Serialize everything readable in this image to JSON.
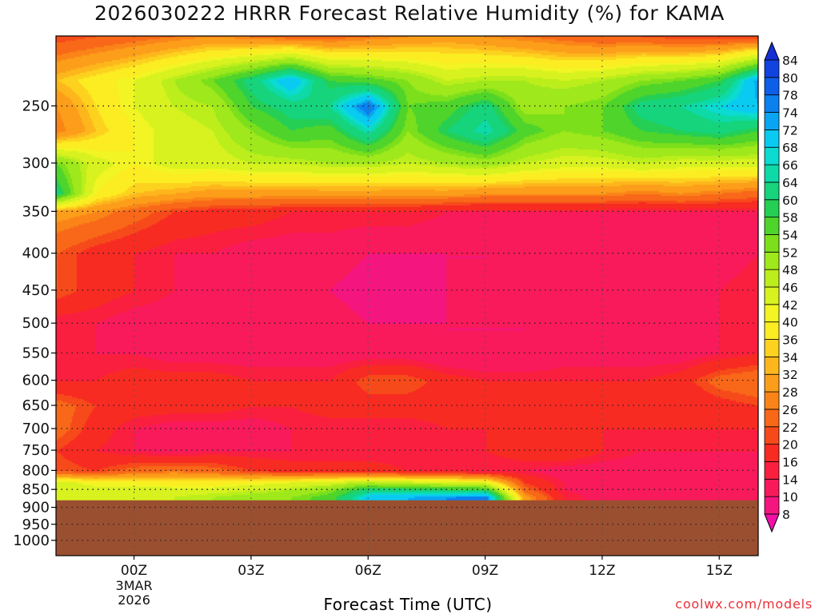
{
  "title": "2026030222 HRRR Forecast Relative Humidity (%) for KAMA",
  "credit": "coolwx.com/models",
  "chart_data": {
    "type": "heatmap",
    "title": "2026030222 HRRR Forecast Relative Humidity (%) for KAMA",
    "xlabel": "Forecast Time (UTC)",
    "ylabel": "",
    "x_ticks": [
      {
        "t": 0,
        "label": "00Z",
        "sub": [
          "3MAR",
          "2026"
        ]
      },
      {
        "t": 3,
        "label": "03Z"
      },
      {
        "t": 6,
        "label": "06Z"
      },
      {
        "t": 9,
        "label": "09Z"
      },
      {
        "t": 12,
        "label": "12Z"
      },
      {
        "t": 15,
        "label": "15Z"
      }
    ],
    "xlim": [
      -2,
      16
    ],
    "y_ticks": [
      250,
      300,
      350,
      400,
      450,
      500,
      550,
      600,
      650,
      700,
      750,
      800,
      850,
      900,
      950,
      1000
    ],
    "ylim": [
      1050,
      200
    ],
    "y_scale": "log",
    "grid": true,
    "ground_level_hpa": 880,
    "ground_color": "#9a4f30",
    "colorbar": {
      "levels": [
        8,
        10,
        14,
        16,
        20,
        22,
        26,
        28,
        32,
        34,
        36,
        40,
        42,
        46,
        48,
        52,
        54,
        58,
        60,
        64,
        66,
        68,
        72,
        74,
        78,
        80,
        84
      ],
      "colors": [
        "#f20fa7",
        "#f5157f",
        "#f81a5b",
        "#fb1f3f",
        "#f72b22",
        "#f74a1a",
        "#f86818",
        "#fa8418",
        "#fc9e1a",
        "#fdb71c",
        "#fdd21e",
        "#fcec22",
        "#f2f523",
        "#d8f21f",
        "#bcee1c",
        "#9ee81b",
        "#7bdf1b",
        "#4fd42b",
        "#25cf54",
        "#15d47c",
        "#0ddaa6",
        "#0bdbd0",
        "#09cbf2",
        "#0aa5f2",
        "#0b80ef",
        "#0d5ee9",
        "#1043df",
        "#1430d5"
      ]
    },
    "rh_profile": {
      "levels_hpa": [
        200,
        230,
        250,
        270,
        300,
        330,
        350,
        400,
        450,
        500,
        550,
        600,
        650,
        700,
        750,
        800,
        830,
        850,
        870
      ],
      "times": [
        -2,
        -1,
        0,
        1,
        2,
        3,
        4,
        5,
        6,
        7,
        8,
        9,
        10,
        11,
        12,
        13,
        14,
        15,
        16
      ],
      "values": [
        [
          20,
          22,
          24,
          26,
          28,
          26,
          24,
          24,
          26,
          28,
          30,
          28,
          26,
          24,
          22,
          22,
          20,
          20,
          20
        ],
        [
          34,
          38,
          42,
          48,
          54,
          62,
          72,
          58,
          56,
          52,
          46,
          48,
          48,
          46,
          48,
          52,
          54,
          58,
          74
        ],
        [
          28,
          36,
          42,
          46,
          48,
          58,
          62,
          64,
          78,
          54,
          56,
          62,
          50,
          52,
          54,
          62,
          64,
          68,
          72
        ],
        [
          26,
          34,
          40,
          44,
          46,
          52,
          58,
          56,
          66,
          52,
          60,
          66,
          56,
          52,
          54,
          58,
          60,
          62,
          58
        ],
        [
          54,
          44,
          40,
          44,
          44,
          46,
          46,
          48,
          48,
          46,
          48,
          50,
          46,
          44,
          44,
          46,
          44,
          44,
          44
        ],
        [
          62,
          40,
          34,
          32,
          30,
          30,
          30,
          30,
          30,
          30,
          30,
          28,
          28,
          28,
          28,
          26,
          28,
          26,
          24
        ],
        [
          30,
          28,
          24,
          20,
          18,
          18,
          16,
          16,
          16,
          16,
          14,
          14,
          14,
          14,
          14,
          14,
          14,
          14,
          14
        ],
        [
          22,
          18,
          16,
          14,
          14,
          12,
          12,
          12,
          10,
          10,
          10,
          10,
          12,
          12,
          12,
          12,
          12,
          12,
          14
        ],
        [
          22,
          18,
          16,
          14,
          12,
          12,
          12,
          10,
          8,
          8,
          10,
          10,
          10,
          12,
          12,
          12,
          12,
          14,
          16
        ],
        [
          14,
          14,
          12,
          12,
          12,
          12,
          12,
          12,
          10,
          10,
          10,
          10,
          10,
          12,
          12,
          12,
          12,
          14,
          14
        ],
        [
          14,
          14,
          14,
          12,
          12,
          12,
          12,
          12,
          12,
          12,
          10,
          10,
          10,
          12,
          12,
          12,
          12,
          14,
          16
        ],
        [
          16,
          16,
          18,
          18,
          18,
          16,
          16,
          16,
          22,
          22,
          18,
          16,
          16,
          16,
          16,
          16,
          18,
          24,
          26
        ],
        [
          24,
          20,
          18,
          18,
          18,
          16,
          16,
          18,
          18,
          18,
          18,
          16,
          16,
          16,
          16,
          16,
          16,
          18,
          20
        ],
        [
          24,
          18,
          14,
          12,
          12,
          12,
          14,
          14,
          14,
          14,
          16,
          16,
          20,
          18,
          16,
          16,
          16,
          16,
          16
        ],
        [
          20,
          16,
          14,
          12,
          14,
          14,
          14,
          14,
          14,
          14,
          14,
          16,
          18,
          20,
          16,
          14,
          14,
          14,
          14
        ],
        [
          22,
          20,
          24,
          26,
          24,
          20,
          18,
          18,
          18,
          16,
          16,
          14,
          14,
          12,
          12,
          12,
          12,
          12,
          12
        ],
        [
          44,
          40,
          40,
          38,
          38,
          40,
          42,
          44,
          48,
          46,
          44,
          42,
          20,
          14,
          12,
          12,
          12,
          12,
          12
        ],
        [
          46,
          44,
          44,
          44,
          44,
          46,
          48,
          52,
          62,
          62,
          60,
          60,
          24,
          14,
          12,
          12,
          12,
          12,
          12
        ],
        [
          44,
          44,
          44,
          46,
          48,
          50,
          52,
          56,
          70,
          72,
          74,
          76,
          30,
          16,
          12,
          12,
          12,
          12,
          12
        ]
      ]
    }
  }
}
